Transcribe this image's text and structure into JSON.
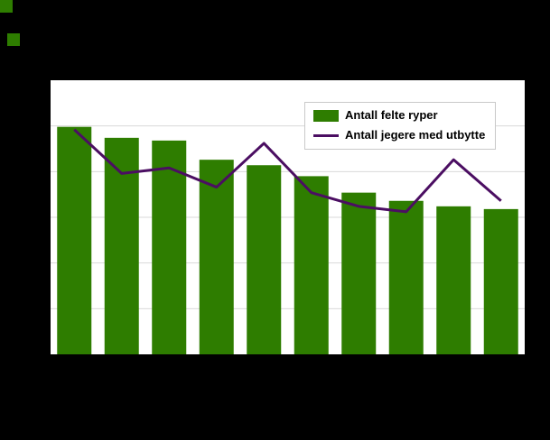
{
  "colors": {
    "page_background": "#000000",
    "plot_background": "#ffffff",
    "plot_border": "#000000",
    "gridline": "#d9d9d9",
    "bar_green": "#2e7d00",
    "line_purple": "#4b0e62",
    "legend_border": "#c9c9c9"
  },
  "legend": {
    "position": "top-right"
  },
  "chart_data": {
    "type": "bar",
    "subtype": "bar+line combo",
    "title": "",
    "xlabel": "",
    "ylabel": "",
    "categories": [
      "",
      "",
      "",
      "",
      "",
      "",
      "",
      "",
      "",
      ""
    ],
    "series": [
      {
        "name": "Antall felte ryper",
        "type": "bar",
        "color": "#2e7d00",
        "values": [
          83,
          79,
          78,
          71,
          69,
          65,
          59,
          56,
          54,
          53
        ]
      },
      {
        "name": "Antall jegere med utbytte",
        "type": "line",
        "color": "#4b0e62",
        "values": [
          82,
          66,
          68,
          61,
          77,
          59,
          54,
          52,
          71,
          56
        ]
      }
    ],
    "ylim": [
      0,
      100
    ],
    "y_gridline_divisions": 6,
    "grid": true,
    "legend_position": "top-right",
    "axis_tick_labels_visible": false
  }
}
